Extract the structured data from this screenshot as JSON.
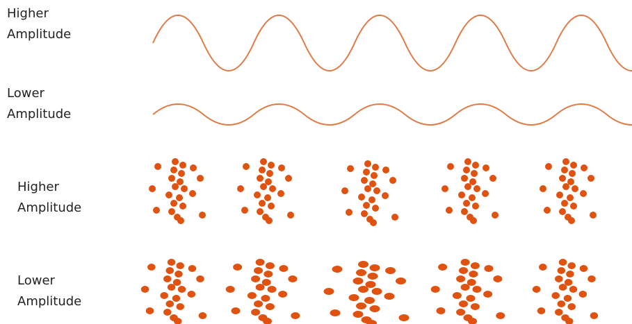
{
  "labels": [
    "Higher Amplitude",
    "Lower Amplitude",
    "Higher Amplitude",
    "Lower Amplitude"
  ]
}
